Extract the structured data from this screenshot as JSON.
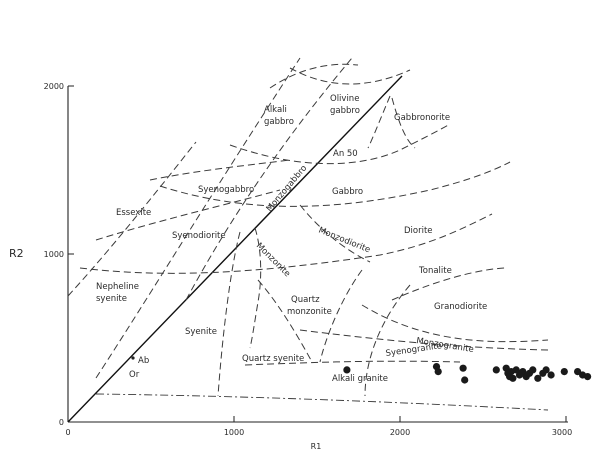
{
  "chart_data": {
    "type": "scatter",
    "xlabel": "R1",
    "ylabel": "R2",
    "xlim": [
      0,
      3000
    ],
    "ylim": [
      0,
      2000
    ],
    "x_ticks": [
      "0",
      "1000",
      "2000",
      "3000"
    ],
    "y_ticks": [
      "0",
      "1000",
      "2000"
    ],
    "series": [
      {
        "x": [
          1680,
          2220,
          2230,
          2380,
          2390,
          2580,
          2640,
          2650,
          2660,
          2670,
          2680,
          2700,
          2720,
          2740,
          2760,
          2780,
          2800,
          2830,
          2860,
          2880,
          2910,
          2990,
          3070,
          3100,
          3130
        ],
        "y": [
          310,
          330,
          300,
          320,
          250,
          310,
          320,
          290,
          270,
          300,
          260,
          310,
          280,
          300,
          270,
          290,
          310,
          260,
          290,
          310,
          280,
          300,
          300,
          280,
          270
        ]
      }
    ],
    "fields": [
      "Alkali gabbro",
      "Olivine gabbro",
      "Gabbronorite",
      "An 50",
      "Essexite",
      "Syenogabbro",
      "Monzogabbro",
      "Gabbro",
      "Syenodiorite",
      "Monzodiorite",
      "Diorite",
      "Monzonite",
      "Nepheline syenite",
      "Tonalite",
      "Quartz monzonite",
      "Granodiorite",
      "Syenite",
      "Monzogranite",
      "Syenogranite",
      "Quartz syenite",
      "Alkali granite"
    ],
    "markers": [
      "Ab",
      "Or"
    ]
  },
  "labels": {
    "ylabel": "R2",
    "xlabel": "R1",
    "fields": {
      "alkali_gabbro": "Alkali gabbro",
      "olivine_gabbro": "Olivine gabbro",
      "gabbronorite": "Gabbronorite",
      "an50": "An 50",
      "essexite": "Essexite",
      "syenogabbro": "Syenogabbro",
      "monzogabbro": "Monzogabbro",
      "gabbro": "Gabbro",
      "syenodiorite": "Syenodiorite",
      "monzodiorite": "Monzodiorite",
      "diorite": "Diorite",
      "monzonite": "Monzonite",
      "nepheline_syenite": "Nepheline syenite",
      "tonalite": "Tonalite",
      "quartz_monzonite": "Quartz monzonite",
      "granodiorite": "Granodiorite",
      "syenite": "Syenite",
      "monzogranite": "Monzogranite",
      "syenogranite": "Syenogranite",
      "quartz_syenite": "Quartz syenite",
      "alkali_granite": "Alkali granite"
    },
    "markers": {
      "ab": "Ab",
      "or": "Or"
    },
    "ticks": {
      "x0": "0",
      "x1000": "1000",
      "x2000": "2000",
      "x3000": "3000",
      "y0": "0",
      "y1000": "1000",
      "y2000": "2000"
    }
  }
}
